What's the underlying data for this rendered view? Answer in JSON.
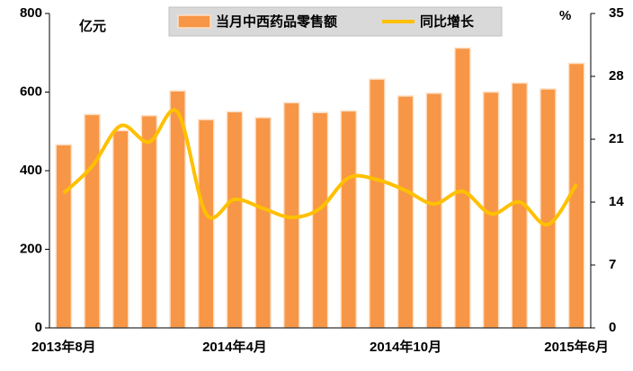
{
  "chart_data": {
    "type": "bar_line",
    "unit_left": "亿元",
    "unit_right": "%",
    "categories": [
      "2013年8月",
      null,
      null,
      null,
      null,
      null,
      "2014年4月",
      null,
      null,
      null,
      null,
      null,
      "2014年10月",
      null,
      null,
      null,
      null,
      null,
      "2015年6月"
    ],
    "series": [
      {
        "name": "当月中西药品零售额",
        "color": "#f79646",
        "type": "bar",
        "values": [
          466,
          543,
          502,
          540,
          603,
          530,
          550,
          535,
          573,
          548,
          552,
          633,
          590,
          597,
          712,
          600,
          623,
          608,
          673
        ]
      },
      {
        "name": "同比增长",
        "color": "#ffc000",
        "type": "line",
        "axis": "y2",
        "values": [
          15.0,
          18.0,
          22.5,
          20.7,
          24.0,
          12.7,
          14.3,
          13.3,
          12.3,
          13.3,
          16.7,
          16.5,
          15.3,
          13.8,
          15.2,
          12.7,
          14.0,
          11.5,
          16.0
        ]
      }
    ],
    "ylim": [
      0,
      800
    ],
    "yticks": [
      0,
      200,
      400,
      600,
      800
    ],
    "y2lim": [
      0,
      35
    ],
    "y2ticks": [
      0,
      7,
      14,
      21,
      28,
      35
    ]
  }
}
